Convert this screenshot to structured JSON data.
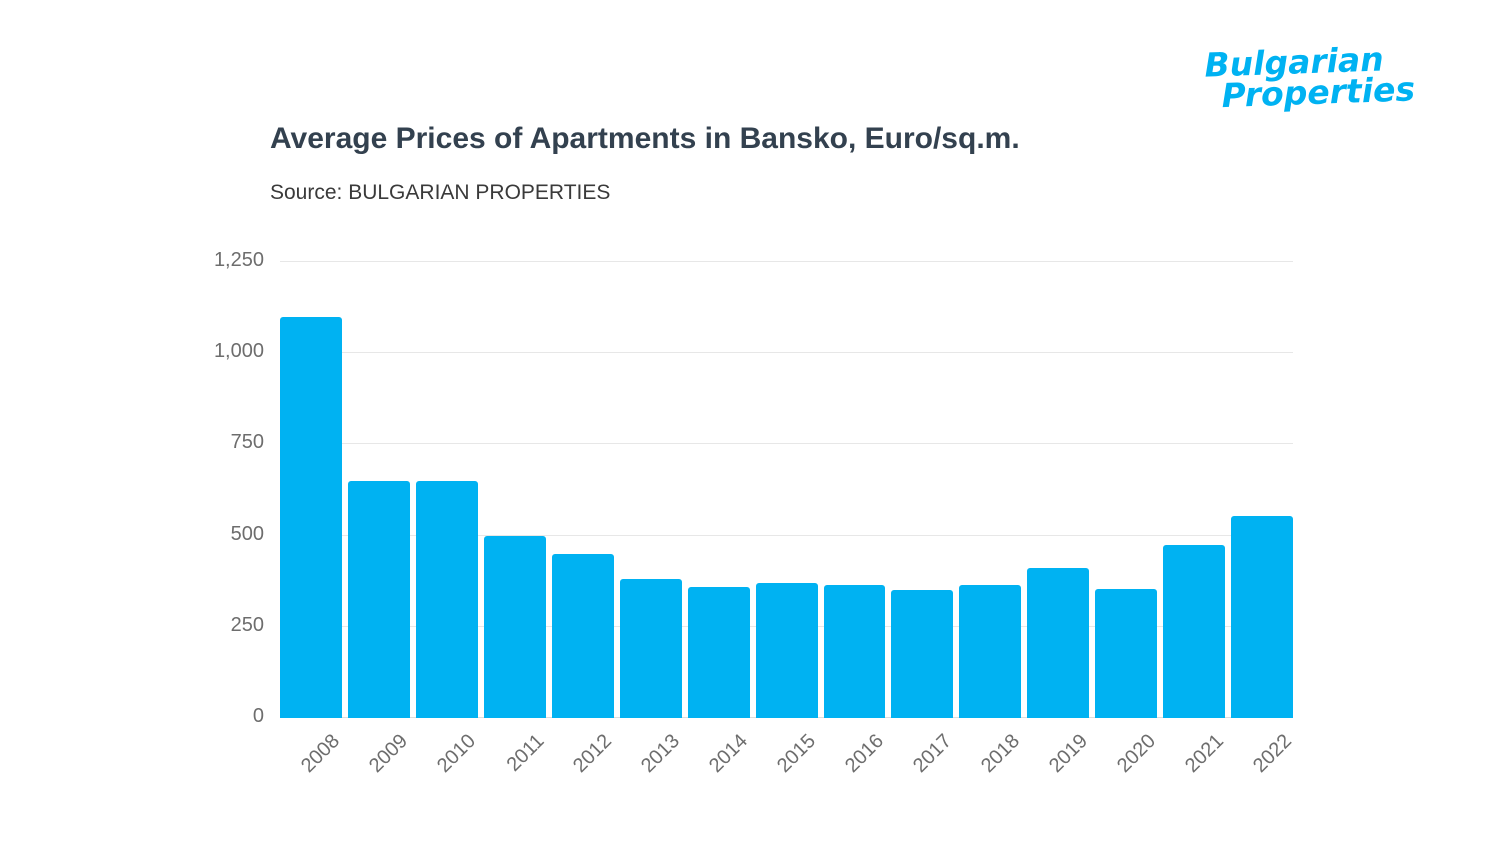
{
  "logo": {
    "line1": "Bulgarian",
    "line2": "Properties"
  },
  "colors": {
    "accent": "#00b2f2",
    "title_text": "#33414f",
    "axis_text": "#6d6d6d",
    "gridline": "#e7e7e7"
  },
  "chart_data": {
    "type": "bar",
    "title": "Average Prices of Apartments in Bansko, Euro/sq.m.",
    "source": "Source: BULGARIAN PROPERTIES",
    "categories": [
      "2008",
      "2009",
      "2010",
      "2011",
      "2012",
      "2013",
      "2014",
      "2015",
      "2016",
      "2017",
      "2018",
      "2019",
      "2020",
      "2021",
      "2022"
    ],
    "values": [
      1100,
      650,
      650,
      500,
      450,
      380,
      360,
      370,
      365,
      350,
      365,
      410,
      355,
      475,
      555
    ],
    "xlabel": "",
    "ylabel": "",
    "ylim": [
      0,
      1250
    ],
    "yticks": [
      0,
      250,
      500,
      750,
      1000,
      1250
    ],
    "ytick_labels": [
      "0",
      "250",
      "500",
      "750",
      "1,000",
      "1,250"
    ],
    "bar_color": "#00b2f2",
    "grid": true,
    "legend": false
  }
}
